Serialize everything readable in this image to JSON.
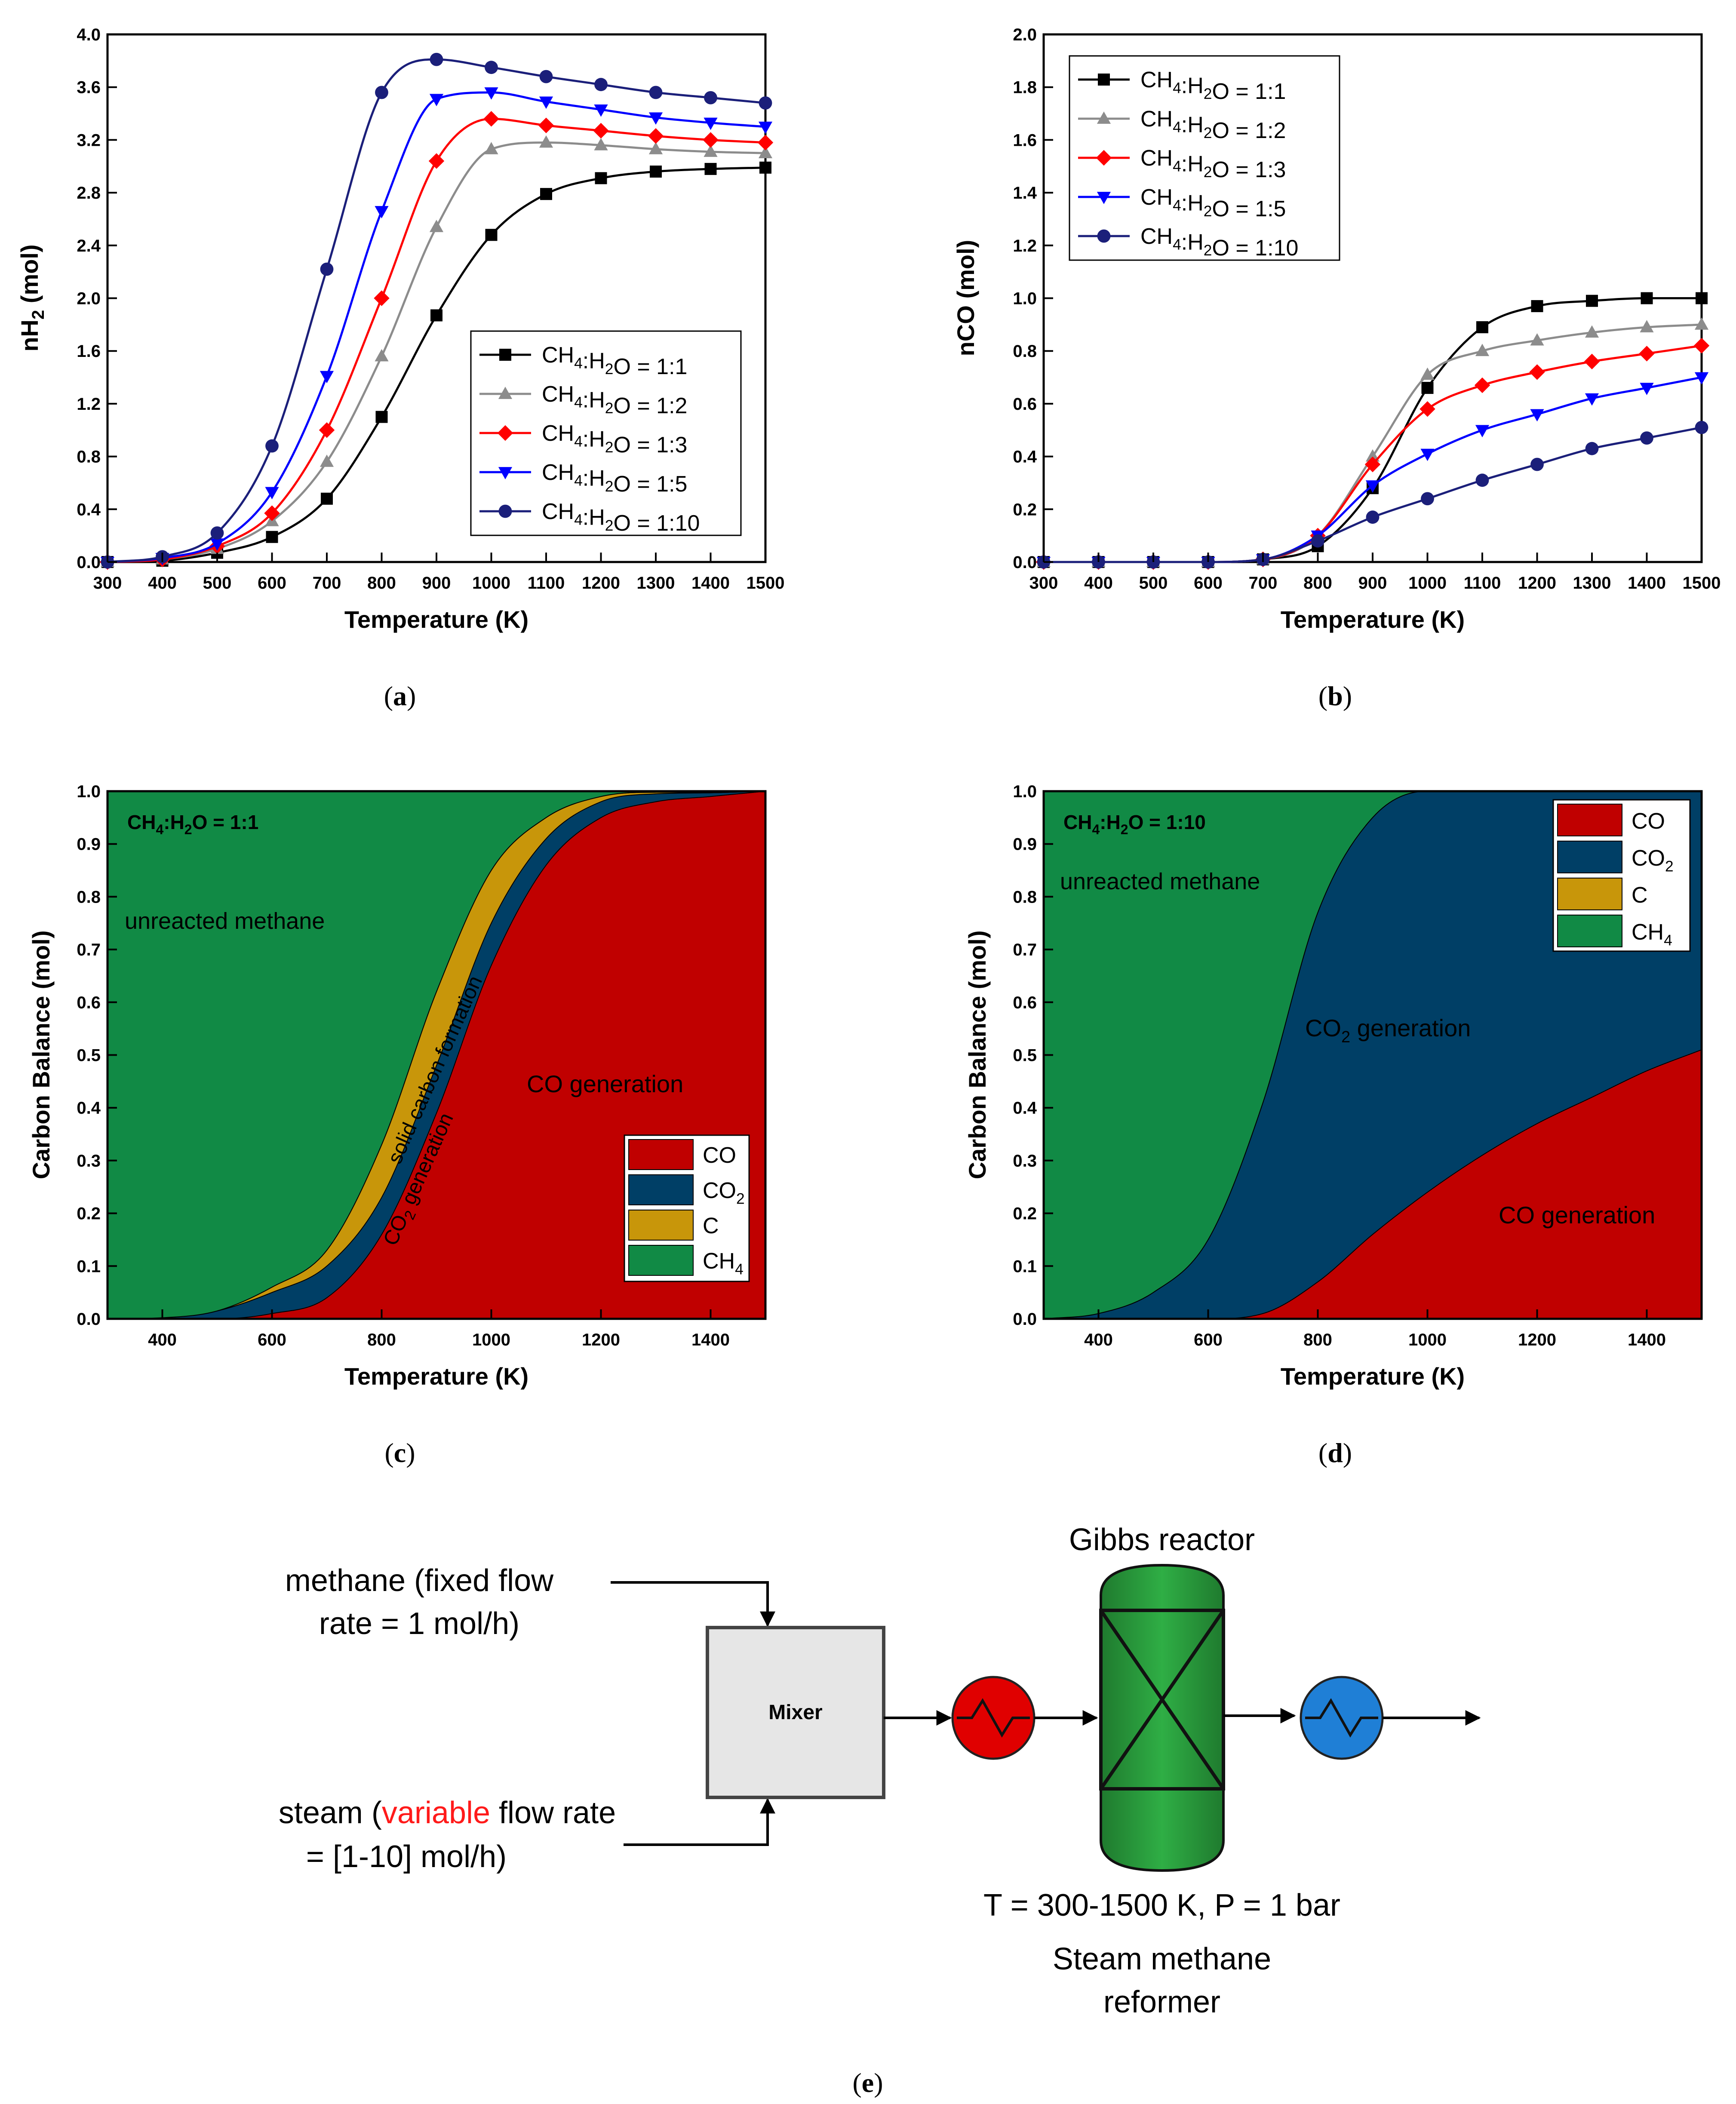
{
  "panel_labels": {
    "a": "(a)",
    "b": "(b)",
    "c": "(c)",
    "d": "(d)",
    "e": "(e)"
  },
  "colors": {
    "r1": "#000000",
    "r2": "#8c8c8c",
    "r3": "#ff0000",
    "r5": "#0000ff",
    "r10": "#1b1f7a",
    "co": "#c00000",
    "co2": "#003f66",
    "c": "#c8960a",
    "ch4": "#118a45",
    "label_methane": "#2ee0a5",
    "label_co": "#ff4040",
    "label_co2": "#3aa0e6",
    "label_c": "#ffbf3a"
  },
  "chart_data": [
    {
      "id": "a",
      "type": "line",
      "xlabel": "Temperature (K)",
      "ylabel": {
        "pre": "nH",
        "sub": "2",
        "post": " (mol)"
      },
      "xlim": [
        300,
        1500
      ],
      "ylim": [
        0,
        4.0
      ],
      "xticks": [
        300,
        400,
        500,
        600,
        700,
        800,
        900,
        1000,
        1100,
        1200,
        1300,
        1400,
        1500
      ],
      "yticks": [
        0.0,
        0.4,
        0.8,
        1.2,
        1.6,
        2.0,
        2.4,
        2.8,
        3.2,
        3.6,
        4.0
      ],
      "legend_position": "center-right",
      "x": [
        300,
        400,
        500,
        600,
        700,
        800,
        900,
        1000,
        1100,
        1200,
        1300,
        1400,
        1500
      ],
      "series": [
        {
          "key": "r1",
          "name": "CH4:H2O = 1:1",
          "values": [
            0.0,
            0.01,
            0.07,
            0.19,
            0.48,
            1.1,
            1.87,
            2.48,
            2.79,
            2.91,
            2.96,
            2.98,
            2.99
          ]
        },
        {
          "key": "r2",
          "name": "CH4:H2O = 1:2",
          "values": [
            0.0,
            0.02,
            0.1,
            0.31,
            0.76,
            1.56,
            2.54,
            3.13,
            3.18,
            3.16,
            3.13,
            3.11,
            3.1
          ]
        },
        {
          "key": "r3",
          "name": "CH4:H2O = 1:3",
          "values": [
            0.0,
            0.02,
            0.12,
            0.37,
            1.0,
            2.0,
            3.04,
            3.36,
            3.31,
            3.27,
            3.23,
            3.2,
            3.18
          ]
        },
        {
          "key": "r5",
          "name": "CH4:H2O = 1:5",
          "values": [
            0.0,
            0.03,
            0.14,
            0.53,
            1.41,
            2.66,
            3.51,
            3.56,
            3.49,
            3.43,
            3.37,
            3.33,
            3.3
          ]
        },
        {
          "key": "r10",
          "name": "CH4:H2O = 1:10",
          "values": [
            0.0,
            0.04,
            0.22,
            0.88,
            2.22,
            3.56,
            3.81,
            3.75,
            3.68,
            3.62,
            3.56,
            3.52,
            3.48
          ]
        }
      ]
    },
    {
      "id": "b",
      "type": "line",
      "xlabel": "Temperature (K)",
      "ylabel": {
        "pre": "nCO (mol)",
        "sub": "",
        "post": ""
      },
      "xlim": [
        300,
        1500
      ],
      "ylim": [
        0,
        2.0
      ],
      "xticks": [
        300,
        400,
        500,
        600,
        700,
        800,
        900,
        1000,
        1100,
        1200,
        1300,
        1400,
        1500
      ],
      "yticks": [
        0.0,
        0.2,
        0.4,
        0.6,
        0.8,
        1.0,
        1.2,
        1.4,
        1.6,
        1.8,
        2.0
      ],
      "legend_position": "top-left",
      "x": [
        300,
        400,
        500,
        600,
        700,
        800,
        900,
        1000,
        1100,
        1200,
        1300,
        1400,
        1500
      ],
      "series": [
        {
          "key": "r1",
          "name": "CH4:H2O = 1:1",
          "values": [
            0,
            0,
            0,
            0,
            0.01,
            0.06,
            0.28,
            0.66,
            0.89,
            0.97,
            0.99,
            1.0,
            1.0
          ]
        },
        {
          "key": "r2",
          "name": "CH4:H2O = 1:2",
          "values": [
            0,
            0,
            0,
            0,
            0.01,
            0.1,
            0.4,
            0.71,
            0.8,
            0.84,
            0.87,
            0.89,
            0.9
          ]
        },
        {
          "key": "r3",
          "name": "CH4:H2O = 1:3",
          "values": [
            0,
            0,
            0,
            0,
            0.01,
            0.1,
            0.37,
            0.58,
            0.67,
            0.72,
            0.76,
            0.79,
            0.82
          ]
        },
        {
          "key": "r5",
          "name": "CH4:H2O = 1:5",
          "values": [
            0,
            0,
            0,
            0,
            0.01,
            0.1,
            0.29,
            0.41,
            0.5,
            0.56,
            0.62,
            0.66,
            0.7
          ]
        },
        {
          "key": "r10",
          "name": "CH4:H2O = 1:10",
          "values": [
            0,
            0,
            0,
            0,
            0.01,
            0.08,
            0.17,
            0.24,
            0.31,
            0.37,
            0.43,
            0.47,
            0.51
          ]
        }
      ]
    },
    {
      "id": "c",
      "type": "area",
      "title": {
        "pre": "CH",
        "s1": "4",
        "mid": ":H",
        "s2": "2",
        "post": "O = 1:1"
      },
      "xlabel": "Temperature (K)",
      "ylabel": "Carbon Balance (mol)",
      "xlim": [
        300,
        1500
      ],
      "ylim": [
        0,
        1.0
      ],
      "xticks": [
        400,
        600,
        800,
        1000,
        1200,
        1400
      ],
      "yticks": [
        0.0,
        0.1,
        0.2,
        0.3,
        0.4,
        0.5,
        0.6,
        0.7,
        0.8,
        0.9,
        1.0
      ],
      "legend_position": "bottom-right",
      "x": [
        300,
        400,
        500,
        600,
        700,
        800,
        900,
        1000,
        1100,
        1200,
        1300,
        1400,
        1500
      ],
      "stack": [
        {
          "key": "co",
          "name": "CO",
          "values": [
            0,
            0.0,
            0.0,
            0.01,
            0.04,
            0.16,
            0.39,
            0.67,
            0.86,
            0.95,
            0.98,
            0.99,
            1.0
          ]
        },
        {
          "key": "co2",
          "name": "CO2",
          "values": [
            0,
            0.002,
            0.015,
            0.04,
            0.06,
            0.07,
            0.09,
            0.08,
            0.05,
            0.03,
            0.015,
            0.007,
            0.0
          ]
        },
        {
          "key": "c",
          "name": "C",
          "values": [
            0,
            0.0,
            0.0,
            0.01,
            0.03,
            0.1,
            0.14,
            0.1,
            0.04,
            0.01,
            0.003,
            0.001,
            0.0
          ]
        },
        {
          "key": "ch4",
          "name": "CH4",
          "values": [
            1,
            0.998,
            0.985,
            0.94,
            0.87,
            0.67,
            0.38,
            0.15,
            0.05,
            0.01,
            0.002,
            0.002,
            0.0
          ]
        }
      ],
      "annotations": {
        "methane": "unreacted methane",
        "co": "CO generation",
        "co2": "generation",
        "c": "solid carbon formation"
      }
    },
    {
      "id": "d",
      "type": "area",
      "title": {
        "pre": "CH",
        "s1": "4",
        "mid": ":H",
        "s2": "2",
        "post": "O = 1:10"
      },
      "xlabel": "Temperature (K)",
      "ylabel": "Carbon Balance (mol)",
      "xlim": [
        300,
        1500
      ],
      "ylim": [
        0,
        1.0
      ],
      "xticks": [
        400,
        600,
        800,
        1000,
        1200,
        1400
      ],
      "yticks": [
        0.0,
        0.1,
        0.2,
        0.3,
        0.4,
        0.5,
        0.6,
        0.7,
        0.8,
        0.9,
        1.0
      ],
      "legend_position": "top-right",
      "x": [
        300,
        400,
        500,
        600,
        700,
        800,
        900,
        1000,
        1100,
        1200,
        1300,
        1400,
        1500
      ],
      "stack": [
        {
          "key": "co",
          "name": "CO",
          "values": [
            0,
            0,
            0,
            0,
            0.01,
            0.07,
            0.16,
            0.24,
            0.31,
            0.37,
            0.42,
            0.47,
            0.51
          ]
        },
        {
          "key": "co2",
          "name": "CO2",
          "values": [
            0,
            0.01,
            0.05,
            0.15,
            0.4,
            0.7,
            0.79,
            0.76,
            0.69,
            0.63,
            0.58,
            0.53,
            0.49
          ]
        },
        {
          "key": "c",
          "name": "C",
          "values": [
            0,
            0,
            0,
            0,
            0,
            0,
            0,
            0,
            0,
            0,
            0,
            0,
            0
          ]
        },
        {
          "key": "ch4",
          "name": "CH4",
          "values": [
            1,
            0.99,
            0.95,
            0.85,
            0.59,
            0.23,
            0.05,
            0.0,
            0.0,
            0.0,
            0.0,
            0.0,
            0.0
          ]
        }
      ],
      "annotations": {
        "methane": "unreacted methane",
        "co": "CO generation",
        "co2": "generation"
      }
    }
  ],
  "diagram": {
    "methane_l1": "methane (fixed flow",
    "methane_l2": "rate = 1 mol/h)",
    "steam_pre": "steam (",
    "steam_var": "variable",
    "steam_post": " flow rate",
    "steam_l2": "= [1-10] mol/h)",
    "mixer": "Mixer",
    "reactor_title": "Gibbs reactor",
    "conditions": "T = 300-1500 K, P = 1 bar",
    "caption_l1": "Steam methane",
    "caption_l2": "reformer"
  }
}
